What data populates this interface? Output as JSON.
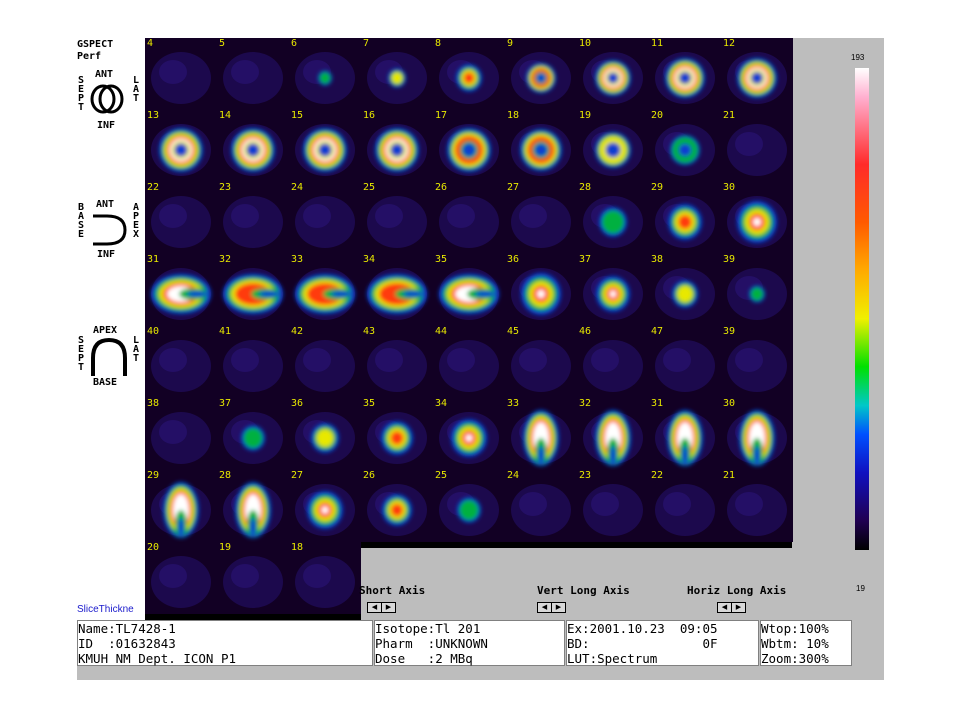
{
  "program": {
    "name_line1": "GSPECT",
    "name_line2": "Perf"
  },
  "orientation": {
    "short_axis": {
      "top": "ANT",
      "bottom": "INF",
      "left": "SEPT",
      "right": "LAT"
    },
    "vert_long_axis": {
      "top": "ANT",
      "bottom": "INF",
      "left": "BASE",
      "right": "APEX"
    },
    "horiz_long_axis": {
      "top": "APEX",
      "bottom": "BASE",
      "left": "SEPT",
      "right": "LAT"
    }
  },
  "rows": [
    {
      "numbers": [
        "4",
        "5",
        "6",
        "7",
        "8",
        "9",
        "10",
        "11",
        "12"
      ]
    },
    {
      "numbers": [
        "13",
        "14",
        "15",
        "16",
        "17",
        "18",
        "19",
        "20",
        "21"
      ]
    },
    {
      "numbers": [
        "22",
        "23",
        "24",
        "25",
        "26",
        "27",
        "28",
        "29",
        "30"
      ]
    },
    {
      "numbers": [
        "31",
        "32",
        "33",
        "34",
        "35",
        "36",
        "37",
        "38",
        "39"
      ]
    },
    {
      "numbers": [
        "40",
        "41",
        "42",
        "43",
        "44",
        "45",
        "46",
        "47",
        "39"
      ]
    },
    {
      "numbers": [
        "38",
        "37",
        "36",
        "35",
        "34",
        "33",
        "32",
        "31",
        "30"
      ]
    },
    {
      "numbers": [
        "29",
        "28",
        "27",
        "26",
        "25",
        "24",
        "23",
        "22",
        "21"
      ]
    },
    {
      "numbers": [
        "20",
        "19",
        "18"
      ]
    }
  ],
  "axis_labels": {
    "short": "Short Axis",
    "vert": "Vert Long Axis",
    "horiz": "Horiz Long Axis"
  },
  "nav": {
    "prev": "◀",
    "next": "▶"
  },
  "slice_thickness": "SliceThickne",
  "patient": {
    "line1": "Name:TL7428-1",
    "line2": "ID  :01632843",
    "line3": "KMUH NM Dept. ICON P1"
  },
  "study": {
    "line1": "Isotope:Tl 201",
    "line2": "Pharm  :UNKNOWN",
    "line3": "Dose   :2 MBq"
  },
  "exam": {
    "line1": "Ex:2001.10.23  09:05",
    "line2": "BD:               0F",
    "line3": "LUT:Spectrum"
  },
  "display": {
    "line1": "Wtop:100%",
    "line2": "Wbtm: 10%",
    "line3": "Zoom:300%"
  },
  "colorbar": {
    "max": "193",
    "min": "19"
  }
}
